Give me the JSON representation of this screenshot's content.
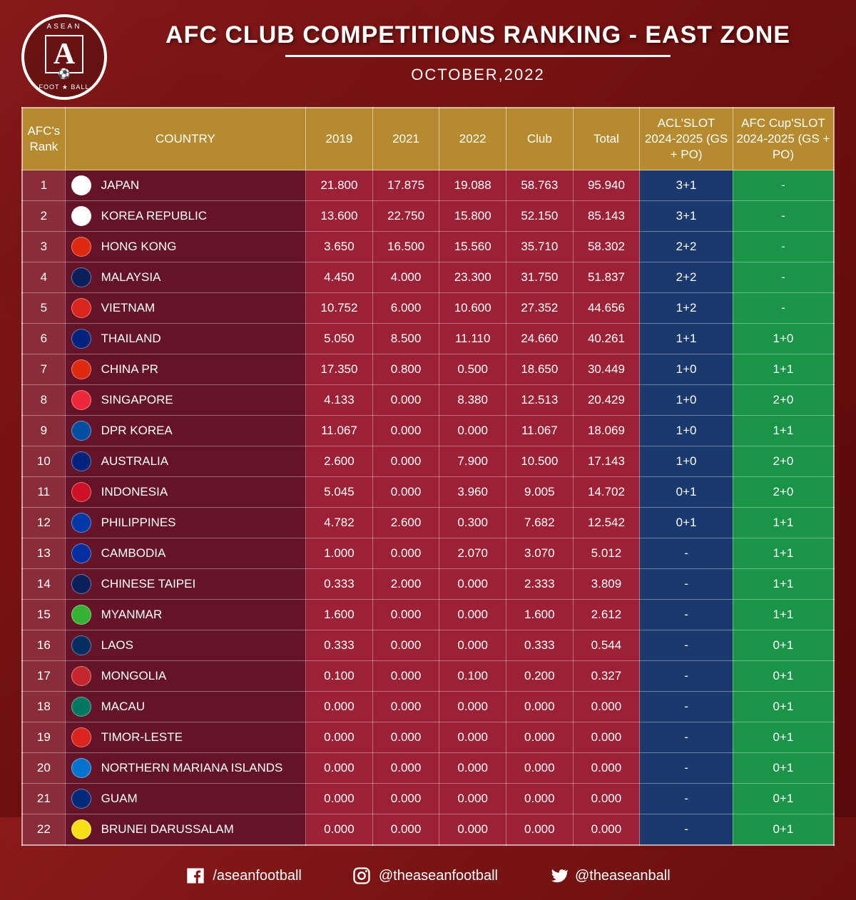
{
  "logo": {
    "top": "ASEAN",
    "letter": "A",
    "bottom": "FOOT ★ BALL"
  },
  "title": "AFC CLUB COMPETITIONS RANKING - EAST ZONE",
  "subtitle": "OCTOBER,2022",
  "columns": {
    "rank": "AFC's Rank",
    "country": "COUNTRY",
    "y2019": "2019",
    "y2021": "2021",
    "y2022": "2022",
    "club": "Club",
    "total": "Total",
    "acl": "ACL'SLOT 2024-2025 (GS + PO)",
    "afc": "AFC Cup'SLOT 2024-2025 (GS + PO)"
  },
  "flag_colors": {
    "JAPAN": "#fff",
    "KOREA REPUBLIC": "#fff",
    "HONG KONG": "#de2910",
    "MALAYSIA": "#0a1f5c",
    "VIETNAM": "#da251d",
    "THAILAND": "#00247d",
    "CHINA PR": "#de2910",
    "SINGAPORE": "#ed2939",
    "DPR KOREA": "#024fa2",
    "AUSTRALIA": "#00247d",
    "INDONESIA": "#ce1126",
    "PHILIPPINES": "#0038a8",
    "CAMBODIA": "#032ea1",
    "CHINESE TAIPEI": "#0a1f5c",
    "MYANMAR": "#34b233",
    "LAOS": "#002d62",
    "MONGOLIA": "#c4272f",
    "MACAU": "#00785f",
    "TIMOR-LESTE": "#dc241f",
    "NORTHERN MARIANA ISLANDS": "#0073cf",
    "GUAM": "#00297b",
    "BRUNEI DARUSSALAM": "#f7e017"
  },
  "rows": [
    {
      "rank": "1",
      "country": "JAPAN",
      "y2019": "21.800",
      "y2021": "17.875",
      "y2022": "19.088",
      "club": "58.763",
      "total": "95.940",
      "acl": "3+1",
      "afc": "-"
    },
    {
      "rank": "2",
      "country": "KOREA REPUBLIC",
      "y2019": "13.600",
      "y2021": "22.750",
      "y2022": "15.800",
      "club": "52.150",
      "total": "85.143",
      "acl": "3+1",
      "afc": "-"
    },
    {
      "rank": "3",
      "country": "HONG KONG",
      "y2019": "3.650",
      "y2021": "16.500",
      "y2022": "15.560",
      "club": "35.710",
      "total": "58.302",
      "acl": "2+2",
      "afc": "-"
    },
    {
      "rank": "4",
      "country": "MALAYSIA",
      "y2019": "4.450",
      "y2021": "4.000",
      "y2022": "23.300",
      "club": "31.750",
      "total": "51.837",
      "acl": "2+2",
      "afc": "-"
    },
    {
      "rank": "5",
      "country": "VIETNAM",
      "y2019": "10.752",
      "y2021": "6.000",
      "y2022": "10.600",
      "club": "27.352",
      "total": "44.656",
      "acl": "1+2",
      "afc": "-"
    },
    {
      "rank": "6",
      "country": "THAILAND",
      "y2019": "5.050",
      "y2021": "8.500",
      "y2022": "11.110",
      "club": "24.660",
      "total": "40.261",
      "acl": "1+1",
      "afc": "1+0"
    },
    {
      "rank": "7",
      "country": "CHINA PR",
      "y2019": "17.350",
      "y2021": "0.800",
      "y2022": "0.500",
      "club": "18.650",
      "total": "30.449",
      "acl": "1+0",
      "afc": "1+1"
    },
    {
      "rank": "8",
      "country": "SINGAPORE",
      "y2019": "4.133",
      "y2021": "0.000",
      "y2022": "8.380",
      "club": "12.513",
      "total": "20.429",
      "acl": "1+0",
      "afc": "2+0"
    },
    {
      "rank": "9",
      "country": "DPR KOREA",
      "y2019": "11.067",
      "y2021": "0.000",
      "y2022": "0.000",
      "club": "11.067",
      "total": "18.069",
      "acl": "1+0",
      "afc": "1+1"
    },
    {
      "rank": "10",
      "country": "AUSTRALIA",
      "y2019": "2.600",
      "y2021": "0.000",
      "y2022": "7.900",
      "club": "10.500",
      "total": "17.143",
      "acl": "1+0",
      "afc": "2+0"
    },
    {
      "rank": "11",
      "country": "INDONESIA",
      "y2019": "5.045",
      "y2021": "0.000",
      "y2022": "3.960",
      "club": "9.005",
      "total": "14.702",
      "acl": "0+1",
      "afc": "2+0"
    },
    {
      "rank": "12",
      "country": "PHILIPPINES",
      "y2019": "4.782",
      "y2021": "2.600",
      "y2022": "0.300",
      "club": "7.682",
      "total": "12.542",
      "acl": "0+1",
      "afc": "1+1"
    },
    {
      "rank": "13",
      "country": "CAMBODIA",
      "y2019": "1.000",
      "y2021": "0.000",
      "y2022": "2.070",
      "club": "3.070",
      "total": "5.012",
      "acl": "-",
      "afc": "1+1"
    },
    {
      "rank": "14",
      "country": "CHINESE TAIPEI",
      "y2019": "0.333",
      "y2021": "2.000",
      "y2022": "0.000",
      "club": "2.333",
      "total": "3.809",
      "acl": "-",
      "afc": "1+1"
    },
    {
      "rank": "15",
      "country": "MYANMAR",
      "y2019": "1.600",
      "y2021": "0.000",
      "y2022": "0.000",
      "club": "1.600",
      "total": "2.612",
      "acl": "-",
      "afc": "1+1"
    },
    {
      "rank": "16",
      "country": "LAOS",
      "y2019": "0.333",
      "y2021": "0.000",
      "y2022": "0.000",
      "club": "0.333",
      "total": "0.544",
      "acl": "-",
      "afc": "0+1"
    },
    {
      "rank": "17",
      "country": "MONGOLIA",
      "y2019": "0.100",
      "y2021": "0.000",
      "y2022": "0.100",
      "club": "0.200",
      "total": "0.327",
      "acl": "-",
      "afc": "0+1"
    },
    {
      "rank": "18",
      "country": "MACAU",
      "y2019": "0.000",
      "y2021": "0.000",
      "y2022": "0.000",
      "club": "0.000",
      "total": "0.000",
      "acl": "-",
      "afc": "0+1"
    },
    {
      "rank": "19",
      "country": "TIMOR-LESTE",
      "y2019": "0.000",
      "y2021": "0.000",
      "y2022": "0.000",
      "club": "0.000",
      "total": "0.000",
      "acl": "-",
      "afc": "0+1"
    },
    {
      "rank": "20",
      "country": "NORTHERN MARIANA ISLANDS",
      "y2019": "0.000",
      "y2021": "0.000",
      "y2022": "0.000",
      "club": "0.000",
      "total": "0.000",
      "acl": "-",
      "afc": "0+1"
    },
    {
      "rank": "21",
      "country": "GUAM",
      "y2019": "0.000",
      "y2021": "0.000",
      "y2022": "0.000",
      "club": "0.000",
      "total": "0.000",
      "acl": "-",
      "afc": "0+1"
    },
    {
      "rank": "22",
      "country": "BRUNEI DARUSSALAM",
      "y2019": "0.000",
      "y2021": "0.000",
      "y2022": "0.000",
      "club": "0.000",
      "total": "0.000",
      "acl": "-",
      "afc": "0+1"
    }
  ],
  "social": {
    "facebook": "/aseanfootball",
    "instagram": "@theaseanfootball",
    "twitter": "@theaseanball"
  }
}
